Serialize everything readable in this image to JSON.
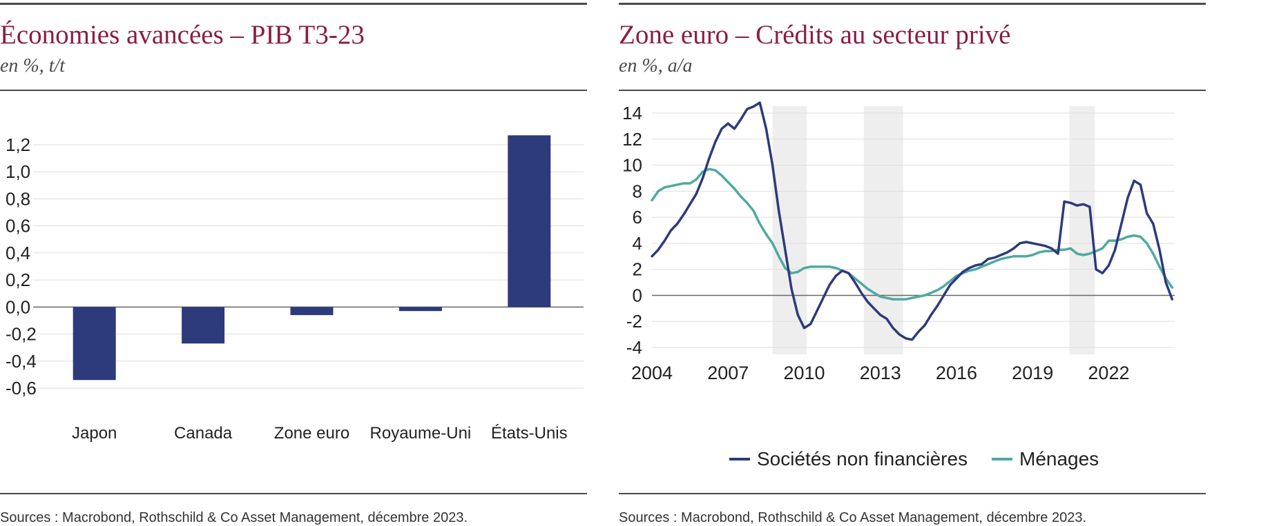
{
  "left": {
    "title": "Économies avancées – PIB T3-23",
    "subtitle": "en %, t/t",
    "source": "Sources : Macrobond, Rothschild & Co Asset Management, décembre 2023."
  },
  "right": {
    "title": "Zone euro – Crédits au secteur privé",
    "subtitle": "en %, a/a",
    "source": "Sources : Macrobond, Rothschild & Co Asset Management, décembre 2023."
  },
  "colors": {
    "title": "#8b1d45",
    "navy": "#2d3a7c",
    "teal": "#4fa9a0",
    "shade": "#eeeeee",
    "grid": "#dddddd"
  },
  "chart_data": [
    {
      "type": "bar",
      "title": "Économies avancées – PIB T3-23",
      "subtitle": "en %, t/t",
      "categories": [
        "Japon",
        "Canada",
        "Zone euro",
        "Royaume-Uni",
        "États-Unis"
      ],
      "values": [
        -0.54,
        -0.27,
        -0.06,
        -0.03,
        1.27
      ],
      "ylim": [
        -0.6,
        1.2
      ],
      "yticks": [
        1.2,
        1.0,
        0.8,
        0.6,
        0.4,
        0.2,
        0.0,
        -0.2,
        -0.4,
        -0.6
      ],
      "ytick_labels": [
        "1,2",
        "1,0",
        "0,8",
        "0,6",
        "0,4",
        "0,2",
        "0,0",
        "-0,2",
        "-0,4",
        "-0,6"
      ],
      "grid": true
    },
    {
      "type": "line",
      "title": "Zone euro – Crédits au secteur privé",
      "subtitle": "en %, a/a",
      "xlim": [
        2004,
        2024.6
      ],
      "ylim": [
        -4,
        14
      ],
      "xticks": [
        2004,
        2007,
        2010,
        2013,
        2016,
        2019,
        2022
      ],
      "xtick_labels": [
        "2004",
        "2007",
        "2010",
        "2013",
        "2016",
        "2019",
        "2022"
      ],
      "yticks": [
        14,
        12,
        10,
        8,
        6,
        4,
        2,
        0,
        -2,
        -4
      ],
      "ytick_labels": [
        "14",
        "12",
        "10",
        "8",
        "6",
        "4",
        "2",
        "0",
        "-2",
        "-4"
      ],
      "shaded_periods": [
        [
          2008.75,
          2010.1
        ],
        [
          2012.35,
          2013.9
        ],
        [
          2020.45,
          2021.45
        ]
      ],
      "grid": true,
      "legend_position": "bottom",
      "series": [
        {
          "name": "Sociétés non financières",
          "color": "#2d3a7c",
          "x": [
            2004.0,
            2004.25,
            2004.5,
            2004.75,
            2005.0,
            2005.25,
            2005.5,
            2005.75,
            2006.0,
            2006.25,
            2006.5,
            2006.75,
            2007.0,
            2007.25,
            2007.5,
            2007.75,
            2008.0,
            2008.25,
            2008.5,
            2008.75,
            2009.0,
            2009.25,
            2009.5,
            2009.75,
            2010.0,
            2010.25,
            2010.5,
            2010.75,
            2011.0,
            2011.25,
            2011.5,
            2011.75,
            2012.0,
            2012.25,
            2012.5,
            2012.75,
            2013.0,
            2013.25,
            2013.5,
            2013.75,
            2014.0,
            2014.25,
            2014.5,
            2014.75,
            2015.0,
            2015.25,
            2015.5,
            2015.75,
            2016.0,
            2016.25,
            2016.5,
            2016.75,
            2017.0,
            2017.25,
            2017.5,
            2017.75,
            2018.0,
            2018.25,
            2018.5,
            2018.75,
            2019.0,
            2019.25,
            2019.5,
            2019.75,
            2020.0,
            2020.25,
            2020.5,
            2020.75,
            2021.0,
            2021.25,
            2021.5,
            2021.75,
            2022.0,
            2022.25,
            2022.5,
            2022.75,
            2023.0,
            2023.25,
            2023.5,
            2023.75,
            2024.0,
            2024.25,
            2024.5
          ],
          "values": [
            3.0,
            3.5,
            4.2,
            5.0,
            5.5,
            6.2,
            7.0,
            7.8,
            9.0,
            10.5,
            11.8,
            12.8,
            13.2,
            12.8,
            13.5,
            14.3,
            14.5,
            14.8,
            12.8,
            10.0,
            6.5,
            3.5,
            0.5,
            -1.5,
            -2.5,
            -2.2,
            -1.2,
            -0.2,
            0.8,
            1.5,
            1.9,
            1.7,
            1.0,
            0.2,
            -0.5,
            -1.0,
            -1.5,
            -1.8,
            -2.5,
            -3.0,
            -3.3,
            -3.4,
            -2.8,
            -2.3,
            -1.5,
            -0.8,
            0.0,
            0.8,
            1.3,
            1.8,
            2.1,
            2.3,
            2.4,
            2.8,
            2.9,
            3.1,
            3.3,
            3.6,
            4.0,
            4.1,
            4.0,
            3.9,
            3.8,
            3.6,
            3.2,
            7.2,
            7.1,
            6.9,
            7.0,
            6.8,
            2.0,
            1.7,
            2.3,
            3.5,
            5.5,
            7.5,
            8.8,
            8.5,
            6.3,
            5.5,
            3.5,
            1.0,
            -0.3
          ]
        },
        {
          "name": "Ménages",
          "color": "#4fa9a0",
          "x": [
            2004.0,
            2004.25,
            2004.5,
            2004.75,
            2005.0,
            2005.25,
            2005.5,
            2005.75,
            2006.0,
            2006.25,
            2006.5,
            2006.75,
            2007.0,
            2007.25,
            2007.5,
            2007.75,
            2008.0,
            2008.25,
            2008.5,
            2008.75,
            2009.0,
            2009.25,
            2009.5,
            2009.75,
            2010.0,
            2010.25,
            2010.5,
            2010.75,
            2011.0,
            2011.25,
            2011.5,
            2011.75,
            2012.0,
            2012.25,
            2012.5,
            2012.75,
            2013.0,
            2013.25,
            2013.5,
            2013.75,
            2014.0,
            2014.25,
            2014.5,
            2014.75,
            2015.0,
            2015.25,
            2015.5,
            2015.75,
            2016.0,
            2016.25,
            2016.5,
            2016.75,
            2017.0,
            2017.25,
            2017.5,
            2017.75,
            2018.0,
            2018.25,
            2018.5,
            2018.75,
            2019.0,
            2019.25,
            2019.5,
            2019.75,
            2020.0,
            2020.25,
            2020.5,
            2020.75,
            2021.0,
            2021.25,
            2021.5,
            2021.75,
            2022.0,
            2022.25,
            2022.5,
            2022.75,
            2023.0,
            2023.25,
            2023.5,
            2023.75,
            2024.0,
            2024.25,
            2024.5
          ],
          "values": [
            7.3,
            8.0,
            8.3,
            8.4,
            8.5,
            8.6,
            8.6,
            8.9,
            9.5,
            9.7,
            9.6,
            9.2,
            8.7,
            8.2,
            7.6,
            7.1,
            6.5,
            5.5,
            4.7,
            4.0,
            3.0,
            2.1,
            1.7,
            1.8,
            2.1,
            2.2,
            2.2,
            2.2,
            2.2,
            2.1,
            1.9,
            1.7,
            1.3,
            0.9,
            0.5,
            0.2,
            -0.1,
            -0.2,
            -0.3,
            -0.3,
            -0.3,
            -0.2,
            -0.1,
            0.0,
            0.2,
            0.4,
            0.7,
            1.1,
            1.5,
            1.7,
            1.9,
            2.0,
            2.2,
            2.4,
            2.6,
            2.8,
            2.9,
            3.0,
            3.0,
            3.0,
            3.1,
            3.3,
            3.4,
            3.4,
            3.5,
            3.5,
            3.6,
            3.2,
            3.1,
            3.2,
            3.4,
            3.6,
            4.2,
            4.2,
            4.3,
            4.5,
            4.6,
            4.5,
            4.0,
            3.2,
            2.2,
            1.3,
            0.6
          ]
        }
      ]
    }
  ]
}
